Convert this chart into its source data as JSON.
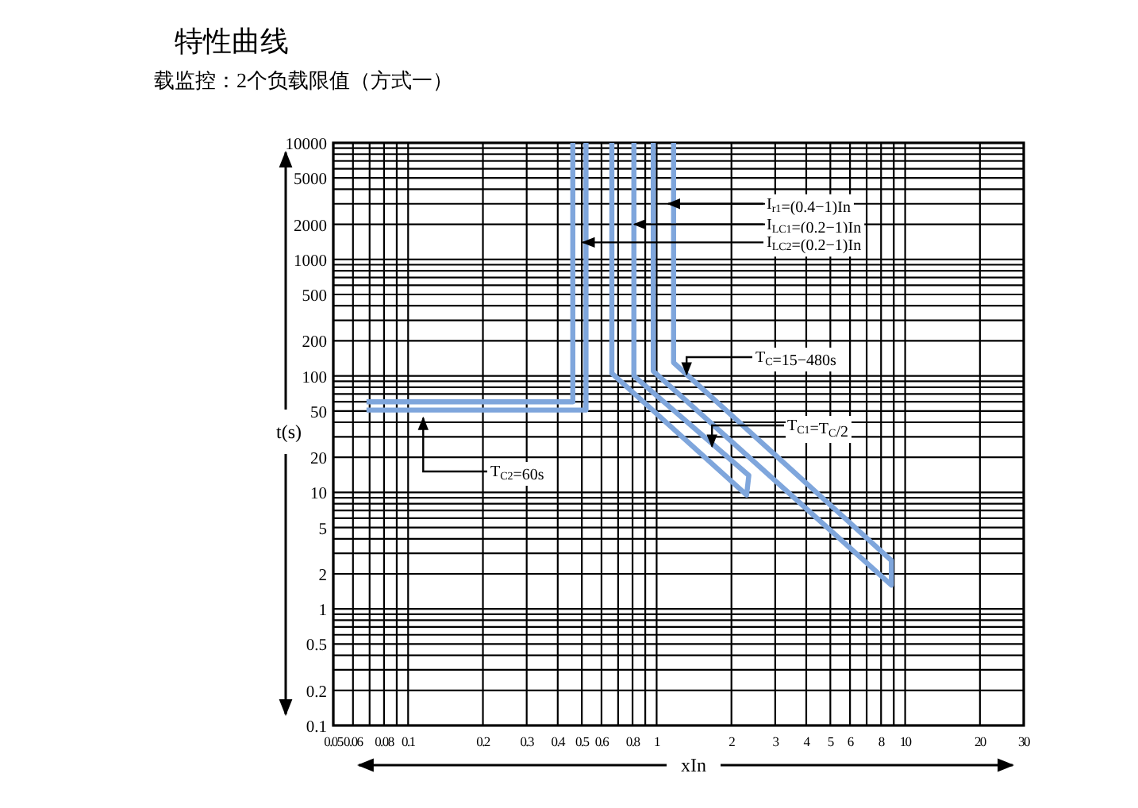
{
  "chart_data": {
    "type": "line",
    "title": "特性曲线",
    "subtitle": "载监控：2个负载限值（方式一）",
    "xlabel": "xIn",
    "ylabel": "t(s)",
    "log": "xy",
    "grid": true,
    "xlim": [
      0.05,
      30
    ],
    "ylim": [
      0.1,
      10000
    ],
    "xticks": [
      0.05,
      0.06,
      0.08,
      0.1,
      0.2,
      0.3,
      0.4,
      0.5,
      0.6,
      0.8,
      1,
      2,
      3,
      4,
      5,
      6,
      8,
      10,
      20,
      30
    ],
    "yticks": [
      0.1,
      0.2,
      0.5,
      1,
      2,
      5,
      10,
      20,
      50,
      100,
      200,
      500,
      1000,
      2000,
      5000,
      10000
    ],
    "series": [
      {
        "color": "#7fa6dc",
        "x": [
          0.068,
          0.46,
          0.46
        ],
        "values": [
          60,
          60,
          10000
        ]
      },
      {
        "color": "#7fa6dc",
        "x": [
          0.068,
          0.52,
          0.52
        ],
        "values": [
          51,
          51,
          10000
        ]
      },
      {
        "color": "#7fa6dc",
        "x": [
          0.66,
          0.66,
          2.3,
          2.35,
          0.81,
          0.81
        ],
        "values": [
          10000,
          105,
          9.5,
          14,
          100,
          10000
        ]
      },
      {
        "color": "#7fa6dc",
        "x": [
          0.97,
          0.97,
          8.8,
          8.8,
          1.17,
          1.17
        ],
        "values": [
          10000,
          110,
          1.6,
          2.6,
          130,
          10000
        ]
      }
    ],
    "annotations": [
      {
        "text": "I$_{r1}$=(0.4−1)In",
        "x": 1.08,
        "y": 3000
      },
      {
        "text": "I$_{LC1}$=(0.2−1)In",
        "x": 0.79,
        "y": 2000
      },
      {
        "text": "I$_{LC2}$=(0.2−1)In",
        "x": 0.49,
        "y": 1400
      },
      {
        "text": "T$_{C}$=15−480s",
        "x": 1.32,
        "y": 100
      },
      {
        "text": "T$_{C1}$=T$_{C}$/2",
        "x": 1.67,
        "y": 24
      },
      {
        "text": "T$_{C2}$=60s",
        "x": 0.115,
        "y": 45
      }
    ]
  }
}
